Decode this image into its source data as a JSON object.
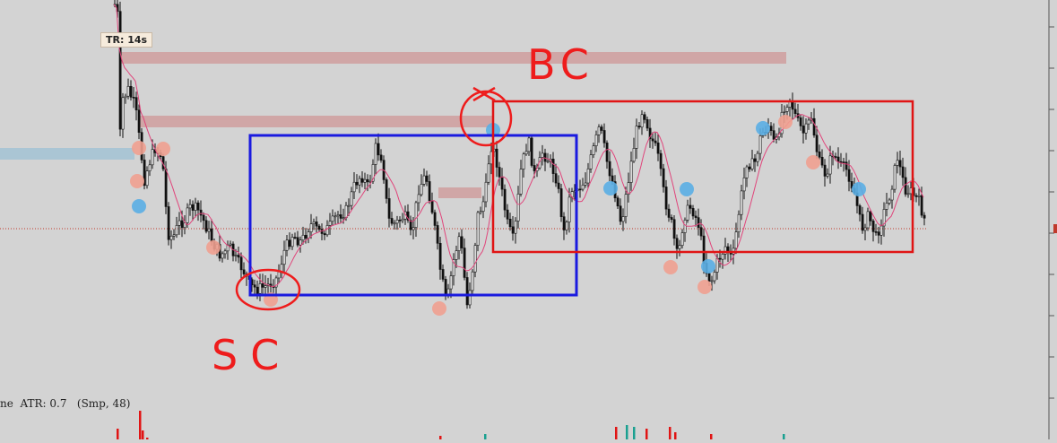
{
  "indicator_label": "TR: 14s",
  "atr_text": "ne  ATR: 0.7   (Smp, 48)",
  "annotations": {
    "bc": "BC",
    "sc": "SC"
  },
  "colors": {
    "background": "#d3d3d3",
    "candle": "#111111",
    "moving_average": "#e0457b",
    "resistance_band": "#cf9e9e",
    "support_band": "#a8c4d4",
    "blue_box": "#1a1adf",
    "red_box": "#e01414",
    "annotation_red": "#ee1c1c",
    "dot_red": "#efa090",
    "dot_blue": "#5aaee4",
    "price_line": "#c0392b"
  },
  "chart_data": {
    "type": "candlestick",
    "note_free": true,
    "candles": [
      [
        0,
        1,
        2,
        3,
        4,
        5,
        6,
        7,
        8,
        9,
        10,
        11,
        12,
        13,
        14,
        15,
        16,
        17,
        18,
        19,
        20,
        21,
        22,
        23,
        24,
        25,
        26,
        27,
        28,
        29,
        30,
        31,
        32,
        33,
        34,
        35,
        36,
        37,
        38,
        39,
        40,
        41,
        42,
        43,
        44,
        45,
        46,
        47,
        48,
        49,
        50,
        51,
        52,
        53,
        54,
        55,
        56,
        57,
        58,
        59,
        60,
        61,
        62,
        63,
        64,
        65,
        66,
        67,
        68,
        69,
        70,
        71,
        72,
        73,
        74,
        75,
        76,
        77,
        78,
        79,
        80,
        81,
        82,
        83,
        84,
        85,
        86,
        87,
        88,
        89,
        90,
        91,
        92,
        93,
        94,
        95,
        96,
        97,
        98,
        99,
        100,
        101,
        102,
        103,
        104,
        105,
        106,
        107,
        108,
        109,
        110,
        111,
        112,
        113,
        114,
        115,
        116,
        117,
        118,
        119,
        120,
        121,
        122,
        123,
        124,
        125,
        126,
        127,
        128,
        129,
        130,
        131,
        132,
        133,
        134,
        135,
        136,
        137,
        138,
        139,
        140,
        141,
        142,
        143,
        144,
        145,
        146,
        147,
        148,
        149,
        150,
        151,
        152,
        153,
        154,
        155,
        156,
        157,
        158,
        159,
        160,
        161,
        162,
        163,
        164,
        165,
        166,
        167,
        168,
        169,
        170,
        171,
        172,
        173,
        174,
        175,
        176,
        177,
        178,
        179,
        180,
        181,
        182,
        183,
        184,
        185,
        186,
        187,
        188,
        189,
        190,
        191,
        192,
        193,
        194,
        195,
        196,
        197,
        198,
        199,
        200,
        201,
        202,
        203,
        204,
        205,
        206,
        207,
        208,
        209,
        210,
        211,
        212,
        213,
        214,
        215,
        216,
        217,
        218,
        219,
        220,
        221,
        222,
        223,
        224,
        225,
        226,
        227,
        228,
        229,
        230,
        231,
        232,
        233,
        234,
        235,
        236,
        237,
        238,
        239,
        240,
        241,
        242,
        243,
        244,
        245,
        246,
        247,
        248,
        249,
        250,
        251,
        252,
        253,
        254,
        255,
        256,
        257,
        258,
        259,
        260,
        261,
        262,
        263,
        264,
        265,
        266,
        267,
        268,
        269,
        270,
        271,
        272,
        273,
        274,
        275,
        276,
        277,
        278,
        279,
        280,
        281,
        282,
        283,
        284,
        285,
        286,
        287,
        288,
        289,
        290,
        291,
        292,
        293,
        294,
        295,
        296,
        297,
        298,
        299,
        300,
        301,
        302,
        303,
        304,
        305,
        306,
        307,
        308,
        309,
        310,
        311,
        312,
        313,
        314,
        315,
        316,
        317,
        318,
        319,
        320,
        321,
        322,
        323,
        324,
        325,
        326,
        327,
        328,
        329,
        330,
        331,
        332,
        333,
        334,
        335,
        336,
        337,
        338,
        339,
        340,
        341,
        342,
        343,
        344,
        345,
        346,
        347,
        348,
        349,
        350,
        351,
        352,
        353,
        354,
        355,
        356,
        357,
        358,
        359,
        360,
        361,
        362,
        363,
        364,
        365,
        366,
        367,
        368,
        369,
        370,
        371,
        372,
        373,
        374,
        375,
        376,
        377,
        378,
        379,
        380,
        381,
        382,
        383,
        384,
        385,
        386,
        387,
        388,
        389,
        390,
        391,
        392,
        393,
        394,
        395,
        396,
        397,
        398,
        399,
        400,
        401,
        402,
        403,
        404,
        405,
        406,
        407,
        408,
        409,
        410,
        411,
        412,
        413,
        414,
        415,
        416,
        417,
        418,
        419,
        420,
        421,
        422,
        423,
        424,
        425,
        426,
        427,
        428,
        429,
        430,
        431,
        432,
        433,
        434,
        435,
        436,
        437,
        438,
        439,
        440,
        441,
        442,
        443,
        444,
        445,
        446,
        447,
        448,
        449,
        450,
        451,
        452,
        453,
        454,
        455,
        456,
        457,
        458,
        459,
        460,
        461,
        462,
        463,
        464,
        465,
        466,
        467,
        468,
        469,
        470,
        471,
        472,
        473,
        474,
        475,
        476,
        477,
        478,
        479,
        480,
        481,
        482,
        483,
        484,
        485,
        486,
        487,
        488,
        489,
        490,
        491,
        492,
        493,
        494,
        495,
        496,
        497,
        498,
        499,
        500,
        501,
        502,
        503,
        504,
        505,
        506,
        507,
        508,
        509,
        510,
        511,
        512,
        513,
        514,
        515,
        516,
        517,
        518,
        519,
        520,
        521,
        522,
        523,
        524,
        525,
        526,
        527,
        528,
        529,
        530,
        531,
        532,
        533,
        534,
        535,
        536,
        537,
        538,
        539,
        540,
        541,
        542,
        543,
        544,
        545,
        546,
        547,
        548,
        549,
        550,
        551,
        552,
        553,
        554,
        555,
        556,
        557,
        558,
        559,
        560,
        561,
        562,
        563,
        564,
        565,
        566,
        567,
        568,
        569,
        570,
        571,
        572,
        573,
        574,
        575,
        576,
        577,
        578,
        579,
        580,
        581,
        582,
        583,
        584,
        585,
        586,
        587,
        588,
        589,
        590,
        591,
        592,
        593,
        594,
        595,
        596,
        597,
        598,
        599,
        600,
        601,
        602,
        603,
        604,
        605,
        606,
        607,
        608,
        609,
        610,
        611,
        612,
        613,
        614,
        615,
        616,
        617,
        618,
        619,
        620,
        621,
        622,
        623,
        624,
        625,
        626,
        627,
        628,
        629,
        630,
        631,
        632,
        633,
        634,
        635,
        636,
        637,
        638,
        639,
        640,
        641,
        642,
        643,
        644,
        645,
        646,
        647,
        648,
        649,
        650,
        651,
        652,
        653,
        654,
        655,
        656,
        657,
        658,
        659,
        660,
        661,
        662,
        663,
        664,
        665,
        666,
        667,
        668,
        669,
        670,
        671,
        672,
        673,
        674,
        675,
        676,
        677,
        678,
        679,
        680,
        681,
        682,
        683,
        684,
        685,
        686,
        687,
        688,
        689,
        690,
        691,
        692,
        693,
        694,
        695,
        696,
        697,
        698,
        699,
        700,
        701,
        702,
        703,
        704,
        705,
        706,
        707,
        708,
        709,
        710,
        711,
        712,
        713,
        714,
        715,
        716,
        717,
        718,
        719,
        720,
        721,
        722,
        723,
        724,
        725,
        726,
        727,
        728,
        729,
        730,
        731,
        732,
        733,
        734,
        735,
        736,
        737,
        738,
        739,
        740,
        741,
        742,
        743,
        744,
        745,
        746,
        747,
        748,
        749,
        750,
        751,
        752,
        753,
        754,
        755,
        756,
        757,
        758,
        759,
        760,
        761,
        762,
        763,
        764,
        765,
        766,
        767,
        768,
        769,
        770,
        771,
        772,
        773,
        774,
        775,
        776,
        777,
        778,
        779,
        780,
        781,
        782,
        783,
        784,
        785,
        786,
        787,
        788,
        789,
        790,
        791,
        792,
        793,
        794,
        795,
        796,
        797,
        798,
        799,
        800,
        801,
        802,
        803,
        804,
        805,
        806,
        807,
        808,
        809,
        810,
        811,
        812,
        813,
        814,
        815,
        816,
        817,
        818,
        819,
        820,
        821,
        822,
        823,
        824,
        825,
        826,
        827,
        828,
        829,
        830,
        831,
        832,
        833,
        834,
        835,
        836,
        837,
        838,
        839,
        840,
        841,
        842,
        843,
        844,
        845,
        846,
        847,
        848,
        849,
        850,
        851,
        852,
        853,
        854,
        855,
        856,
        857,
        858,
        859,
        860,
        861,
        862,
        863,
        864,
        865,
        866,
        867,
        868,
        869,
        870,
        871,
        872,
        873,
        874,
        875,
        876,
        877,
        878,
        879,
        880,
        881,
        882,
        883,
        884,
        885,
        886,
        887,
        888,
        889,
        890,
        891,
        892,
        893,
        894,
        895,
        896,
        897,
        898,
        899,
        900,
        901,
        902,
        903,
        904,
        905,
        906,
        907,
        908,
        909,
        910,
        911,
        912,
        913,
        914,
        915,
        916,
        917,
        918,
        919,
        920,
        921,
        922,
        923,
        924,
        925,
        926,
        927,
        928,
        929,
        930,
        931,
        932,
        933,
        934,
        935,
        936,
        937,
        938,
        939,
        940,
        941,
        942,
        943,
        944,
        945,
        946,
        947,
        948,
        949,
        950,
        951,
        952,
        953,
        954,
        955,
        956,
        957,
        958,
        959,
        960,
        961,
        962,
        963,
        964,
        965,
        966,
        967,
        968,
        969,
        970,
        971,
        972,
        973,
        974,
        975,
        976,
        977,
        978,
        979,
        980,
        981,
        982,
        983,
        984,
        985,
        986,
        987,
        988,
        989,
        990,
        991,
        992,
        993,
        994,
        995,
        996,
        997,
        998,
        999,
        1000,
        1001,
        1002,
        1003,
        1004,
        1005,
        1006,
        1007,
        1008,
        1009,
        1010,
        1011,
        1012,
        1013,
        1014,
        1015,
        1016,
        1017,
        1018,
        1019,
        1020,
        1021,
        1022,
        1023,
        1024,
        1025,
        1026,
        1027,
        1028,
        1029,
        1030,
        1031,
        1032,
        1033,
        1034,
        1035,
        1036,
        1037,
        1038,
        1039,
        1040,
        1041,
        1042,
        1043,
        1044,
        1045,
        1046,
        1047,
        1048,
        1049,
        1050,
        1051,
        1052,
        1053,
        1054,
        1055,
        1056,
        1057,
        1058,
        1059,
        1060,
        1061,
        1062,
        1063,
        1064,
        1065,
        1066,
        1067,
        1068,
        1069,
        1070,
        1071,
        1072,
        1073,
        1074,
        1075,
        1076,
        1077,
        1078,
        1079,
        1080,
        1081,
        1082,
        1083,
        1084,
        1085,
        1086,
        1087,
        1088,
        1089,
        1090,
        1091,
        1092,
        1093,
        1094,
        1095,
        1096,
        1097,
        1098,
        1099,
        1100,
        1101,
        1102,
        1103,
        1104,
        1105,
        1106,
        1107,
        1108,
        1109,
        1110,
        1111,
        1112,
        1113,
        1114,
        1115,
        1116,
        1117,
        1118,
        1119,
        1120,
        1121,
        1122,
        1123,
        1124,
        1125,
        1126,
        1127,
        1128,
        1129,
        1130,
        1131,
        1132,
        1133,
        1134,
        1135,
        1136,
        1137,
        1138,
        1139,
        1140,
        1141,
        1142,
        1143,
        1144,
        1145,
        1146,
        1147,
        1148,
        1149,
        1150,
        1151,
        1152,
        1153,
        1154,
        1155,
        1156,
        1157,
        1158,
        1159,
        1160,
        1161,
        1162,
        1163,
        1164,
        1165,
        1166,
        1167,
        1168,
        1169,
        1170,
        1171,
        1172,
        1173,
        1174,
        1175,
        1176,
        1177,
        1178
      ]
    ],
    "series_close": [
      0,
      26,
      52,
      98,
      118,
      108,
      135,
      160,
      185,
      168,
      176,
      208,
      245,
      270,
      263,
      240,
      232,
      220,
      248,
      262,
      250,
      270,
      285,
      268,
      262,
      292,
      318,
      322,
      324,
      318,
      328,
      310,
      292,
      300,
      268,
      256,
      262,
      248,
      270,
      268,
      255,
      238,
      250,
      230,
      260,
      258,
      240,
      262,
      246,
      245,
      220,
      212,
      202,
      196,
      180,
      190,
      210,
      186,
      180,
      162,
      178,
      164,
      150,
      170,
      175,
      188,
      210,
      232,
      258,
      248,
      238,
      222,
      248,
      262,
      270,
      242,
      245,
      216,
      250,
      270,
      265,
      258,
      244,
      248,
      266,
      300,
      320,
      342,
      350,
      355,
      320,
      300,
      296,
      270,
      262,
      258,
      276,
      268,
      270,
      250,
      224,
      220,
      160,
      150,
      148,
      156,
      166,
      172,
      190,
      176,
      214,
      185,
      172,
      192,
      188,
      170,
      196,
      205,
      180,
      195,
      210,
      238,
      250,
      262,
      275,
      255,
      238,
      226,
      210,
      200,
      190,
      176,
      168,
      170,
      200,
      190,
      198,
      178,
      200,
      185,
      166,
      174,
      188,
      205,
      196,
      186,
      212,
      190,
      182,
      198,
      168,
      152,
      150,
      164,
      180,
      196,
      170,
      152,
      162,
      176,
      190,
      205,
      215,
      236,
      264,
      270,
      246,
      238,
      220,
      270,
      300,
      330,
      325,
      312,
      320,
      300,
      296,
      305,
      292,
      275,
      262,
      244,
      218,
      200,
      210,
      230,
      250,
      268,
      252,
      232,
      212,
      196,
      186,
      194,
      176,
      158,
      140,
      132,
      128,
      150,
      168,
      166,
      176,
      174,
      158,
      170,
      172,
      200,
      216,
      212,
      224,
      218,
      202,
      232,
      248,
      264,
      262,
      266,
      250,
      264,
      272,
      260,
      218,
      210,
      196,
      178,
      174,
      200,
      190,
      206,
      218,
      212,
      222,
      248,
      260,
      250,
      252,
      240
    ],
    "moving_average": true,
    "horizontal_price_line": true
  }
}
